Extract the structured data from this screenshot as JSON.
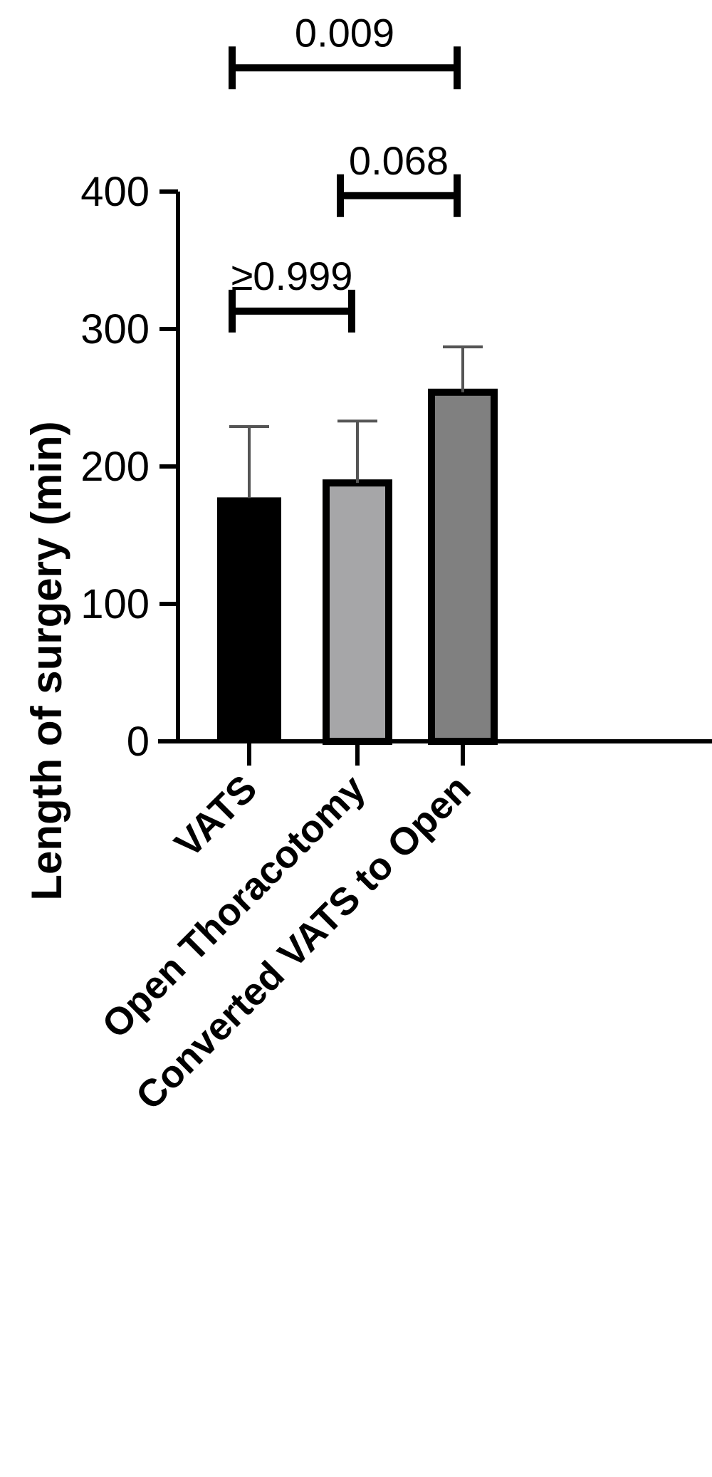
{
  "chart_data": {
    "type": "bar",
    "categories": [
      "VATS",
      "Open Thoracotomy",
      "Converted VATS to Open"
    ],
    "values": [
      177,
      188,
      254
    ],
    "error_upper": [
      229,
      233,
      287
    ],
    "colors": [
      "#000000",
      "#a6a6a8",
      "#808080"
    ],
    "ylabel": "Length of surgery (min)",
    "ylim": [
      0,
      400
    ],
    "yticks": [
      0,
      100,
      200,
      300,
      400
    ],
    "ytick_labels": [
      "0",
      "100",
      "200",
      "300",
      "400"
    ],
    "grid": false,
    "comparisons": [
      {
        "from": 0,
        "to": 1,
        "label": "≥0.999",
        "level": 313
      },
      {
        "from": 1,
        "to": 2,
        "label": "0.068",
        "level": 397
      },
      {
        "from": 0,
        "to": 2,
        "label": "0.009",
        "level": 490
      }
    ]
  }
}
